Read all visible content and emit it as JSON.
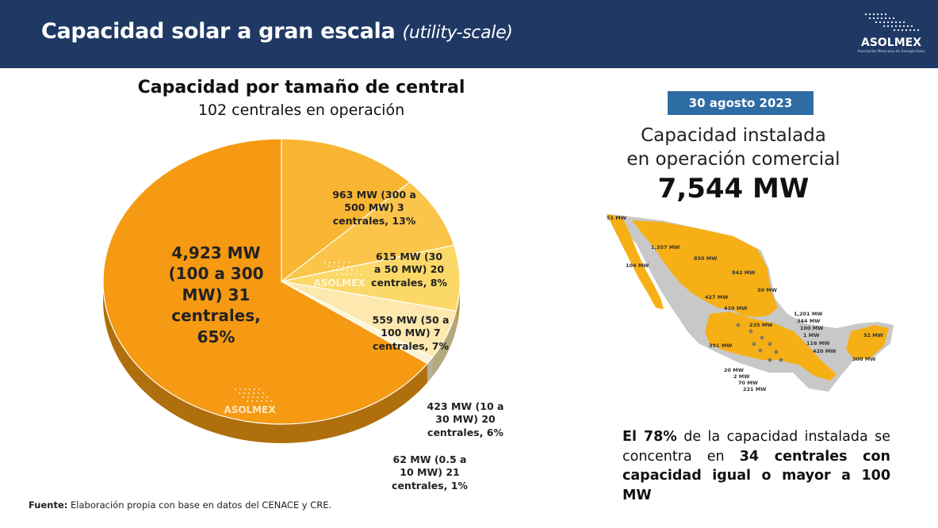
{
  "header": {
    "title": "Capacidad solar a gran escala",
    "title_sub": "(utility-scale)",
    "logo_text": "ASOLMEX",
    "logo_sub": "Asociación Mexicana de Energía Solar"
  },
  "chart_data": {
    "type": "pie",
    "title": "Capacidad por tamaño de central",
    "subtitle": "102 centrales en operación",
    "unit": "MW",
    "slices": [
      {
        "value": 4923,
        "percent": 65,
        "label_lines": [
          "4,923 MW",
          "(100 a 300",
          "MW) 31",
          "centrales,",
          "65%"
        ]
      },
      {
        "value": 963,
        "percent": 13,
        "label_lines": [
          "963 MW (300 a",
          "500 MW) 3",
          "centrales, 13%"
        ]
      },
      {
        "value": 615,
        "percent": 8,
        "label_lines": [
          "615 MW (30",
          "a 50 MW) 20",
          "centrales, 8%"
        ]
      },
      {
        "value": 559,
        "percent": 7,
        "label_lines": [
          "559 MW (50 a",
          "100 MW) 7",
          "centrales, 7%"
        ]
      },
      {
        "value": 423,
        "percent": 6,
        "label_lines": [
          "423 MW (10 a",
          "30 MW) 20",
          "centrales, 6%"
        ]
      },
      {
        "value": 62,
        "percent": 1,
        "label_lines": [
          "62 MW (0.5 a",
          "10 MW) 21",
          "centrales, 1%"
        ]
      }
    ],
    "colors": [
      "#f59a12",
      "#f8b531",
      "#fac54a",
      "#fbd868",
      "#fde9ad",
      "#fdf3d6"
    ],
    "watermark": "ASOLMEX"
  },
  "info": {
    "date": "30 agosto 2023",
    "installed_line1": "Capacidad instalada",
    "installed_line2": "en operación comercial",
    "installed_value": "7,544 MW"
  },
  "map_labels": [
    "51 MW",
    "1,357 MW",
    "850 MW",
    "104 MW",
    "842 MW",
    "30 MW",
    "427 MW",
    "410 MW",
    "1,201 MW",
    "344 MW",
    "235 MW",
    "100 MW",
    "1 MW",
    "116 MW",
    "420 MW",
    "391 MW",
    "52 MW",
    "300 MW",
    "20 MW",
    "2 MW",
    "70 MW",
    "221 MW"
  ],
  "summary": {
    "l1_b": "El 78%",
    "l1": " de la capacidad instalada se",
    "l2": "concentra en ",
    "l2_b": "34 centrales con",
    "l3_b": "capacidad igual o mayor a 100 MW"
  },
  "footnote": {
    "bold": "Fuente:",
    "text": " Elaboración propia con base en datos del CENACE y CRE."
  }
}
